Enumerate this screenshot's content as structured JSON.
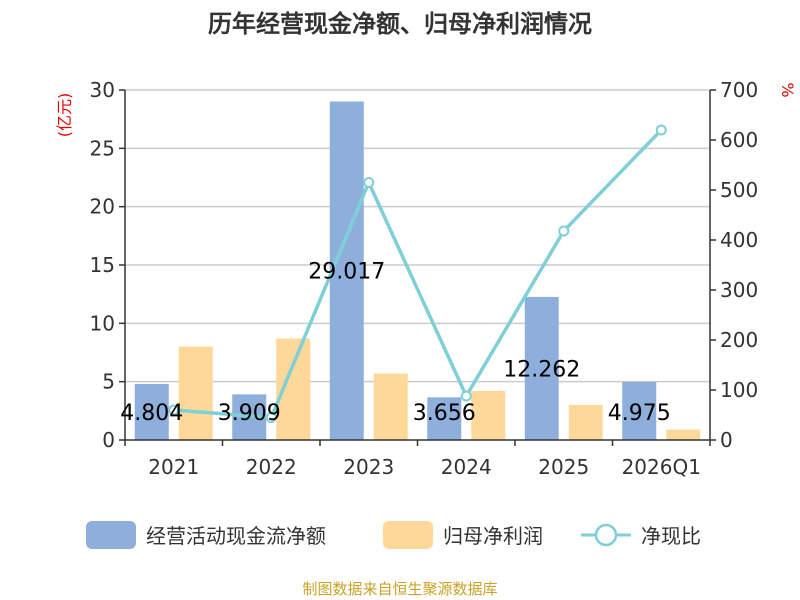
{
  "chart_data": {
    "type": "bar",
    "title": "历年经营现金净额、归母净利润情况",
    "categories": [
      "2021",
      "2022",
      "2023",
      "2024",
      "2025",
      "2026Q1"
    ],
    "series": [
      {
        "name": "经营活动现金流净额",
        "type": "bar",
        "axis": "left",
        "color": "#8eaedc",
        "values": [
          4.804,
          3.909,
          29.017,
          3.656,
          12.262,
          4.975
        ]
      },
      {
        "name": "归母净利润",
        "type": "bar",
        "axis": "left",
        "color": "#fdd898",
        "values": [
          8.0,
          8.7,
          5.7,
          4.2,
          3.0,
          0.9
        ]
      },
      {
        "name": "净现比",
        "type": "line",
        "axis": "right",
        "color": "#7fcfd6",
        "values": [
          60,
          45,
          515,
          88,
          418,
          620
        ]
      }
    ],
    "data_labels": [
      "4.804",
      "3.909",
      "29.017",
      "3.656",
      "12.262",
      "4.975"
    ],
    "y_left": {
      "unit": "(亿元)",
      "ylim": [
        0,
        30
      ],
      "ticks": [
        "0",
        "5",
        "10",
        "15",
        "20",
        "25",
        "30"
      ]
    },
    "y_right": {
      "unit": "%",
      "ylim": [
        0,
        700
      ],
      "ticks": [
        "0",
        "100",
        "200",
        "300",
        "400",
        "500",
        "600",
        "700"
      ]
    },
    "grid": true,
    "legend_position": "bottom"
  },
  "source": "制图数据来自恒生聚源数据库"
}
